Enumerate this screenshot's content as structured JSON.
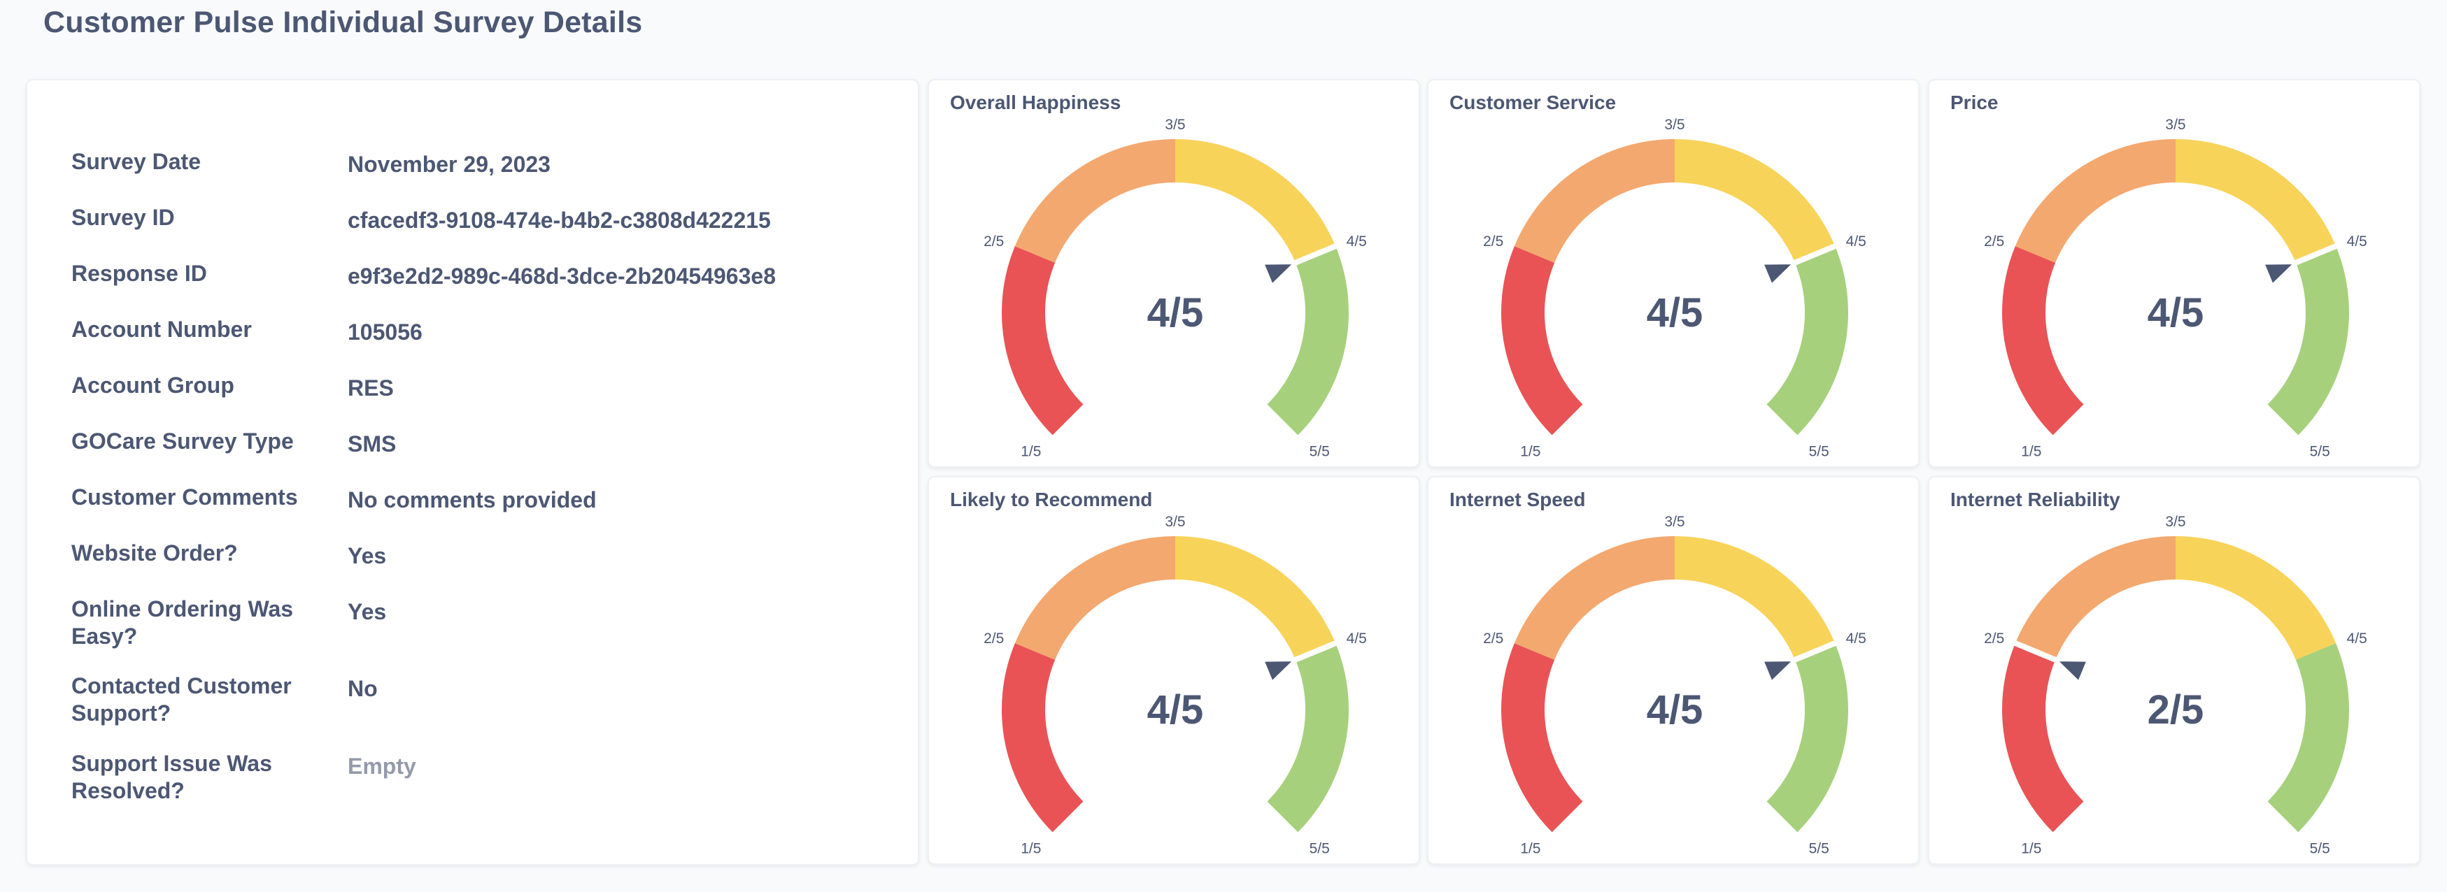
{
  "page": {
    "title": "Customer Pulse Individual Survey Details"
  },
  "details": [
    {
      "key": "Survey Date",
      "value": "November 29, 2023"
    },
    {
      "key": "Survey ID",
      "value": "cfacedf3-9108-474e-b4b2-c3808d422215"
    },
    {
      "key": "Response ID",
      "value": "e9f3e2d2-989c-468d-3dce-2b20454963e8"
    },
    {
      "key": "Account Number",
      "value": "105056"
    },
    {
      "key": "Account Group",
      "value": "RES"
    },
    {
      "key": "GOCare Survey Type",
      "value": "SMS"
    },
    {
      "key": "Customer Comments",
      "value": "No comments provided"
    },
    {
      "key": "Website Order?",
      "value": "Yes"
    },
    {
      "key": "Online Ordering Was Easy?",
      "value": "Yes"
    },
    {
      "key": "Contacted Customer Support?",
      "value": "No"
    },
    {
      "key": "Support Issue Was Resolved?",
      "value": "Empty"
    }
  ],
  "gauge_colors": {
    "red": "#e95355",
    "orange": "#f3a86f",
    "yellow": "#f8d35a",
    "green": "#a7d07c",
    "pointer": "#4c5773"
  },
  "gauges": [
    {
      "title": "Overall Happiness",
      "value": 4,
      "display": "4/5",
      "ticks": [
        "1/5",
        "2/5",
        "3/5",
        "4/5",
        "5/5"
      ]
    },
    {
      "title": "Customer Service",
      "value": 4,
      "display": "4/5",
      "ticks": [
        "1/5",
        "2/5",
        "3/5",
        "4/5",
        "5/5"
      ]
    },
    {
      "title": "Price",
      "value": 4,
      "display": "4/5",
      "ticks": [
        "1/5",
        "2/5",
        "3/5",
        "4/5",
        "5/5"
      ]
    },
    {
      "title": "Likely to Recommend",
      "value": 4,
      "display": "4/5",
      "ticks": [
        "1/5",
        "2/5",
        "3/5",
        "4/5",
        "5/5"
      ]
    },
    {
      "title": "Internet Speed",
      "value": 4,
      "display": "4/5",
      "ticks": [
        "1/5",
        "2/5",
        "3/5",
        "4/5",
        "5/5"
      ]
    },
    {
      "title": "Internet Reliability",
      "value": 2,
      "display": "2/5",
      "ticks": [
        "1/5",
        "2/5",
        "3/5",
        "4/5",
        "5/5"
      ]
    }
  ]
}
